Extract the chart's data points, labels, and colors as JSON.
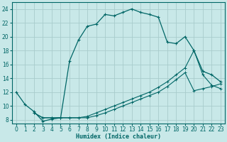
{
  "xlabel": "Humidex (Indice chaleur)",
  "bg_color": "#c8e8e8",
  "grid_color": "#a8cccc",
  "line_color": "#006666",
  "xlim": [
    -0.5,
    23.5
  ],
  "ylim": [
    7.5,
    25.0
  ],
  "xticks": [
    0,
    1,
    2,
    3,
    4,
    5,
    6,
    7,
    8,
    9,
    10,
    11,
    12,
    13,
    14,
    15,
    16,
    17,
    18,
    19,
    20,
    21,
    22,
    23
  ],
  "yticks": [
    8,
    10,
    12,
    14,
    16,
    18,
    20,
    22,
    24
  ],
  "curve1_x": [
    0,
    1,
    2,
    3,
    4,
    5,
    6,
    7,
    8,
    9,
    10,
    11,
    12,
    13,
    14,
    15,
    16,
    17,
    18,
    19,
    20,
    21,
    22,
    23
  ],
  "curve1_y": [
    12,
    10.2,
    9.2,
    7.8,
    8.1,
    8.3,
    16.5,
    19.5,
    21.5,
    21.8,
    23.2,
    23.0,
    23.5,
    24.0,
    23.5,
    23.2,
    22.8,
    19.2,
    19.0,
    20.0,
    18.0,
    15.0,
    14.5,
    13.5
  ],
  "curve2_x": [
    2,
    3,
    4,
    5,
    6,
    7,
    8,
    9,
    10,
    11,
    12,
    13,
    14,
    15,
    16,
    17,
    18,
    19,
    20,
    21,
    22,
    23
  ],
  "curve2_y": [
    9.0,
    8.3,
    8.3,
    8.3,
    8.3,
    8.3,
    8.5,
    9.0,
    9.5,
    10.0,
    10.5,
    11.0,
    11.5,
    12.0,
    12.7,
    13.5,
    14.5,
    15.5,
    18.0,
    14.5,
    13.0,
    12.5
  ],
  "curve3_x": [
    2,
    3,
    4,
    5,
    6,
    7,
    8,
    9,
    10,
    11,
    12,
    13,
    14,
    15,
    16,
    17,
    18,
    19,
    20,
    21,
    22,
    23
  ],
  "curve3_y": [
    9.0,
    8.3,
    8.3,
    8.3,
    8.3,
    8.3,
    8.3,
    8.6,
    9.0,
    9.5,
    10.0,
    10.5,
    11.0,
    11.5,
    12.0,
    12.8,
    13.8,
    14.8,
    12.2,
    12.5,
    12.8,
    13.2
  ]
}
